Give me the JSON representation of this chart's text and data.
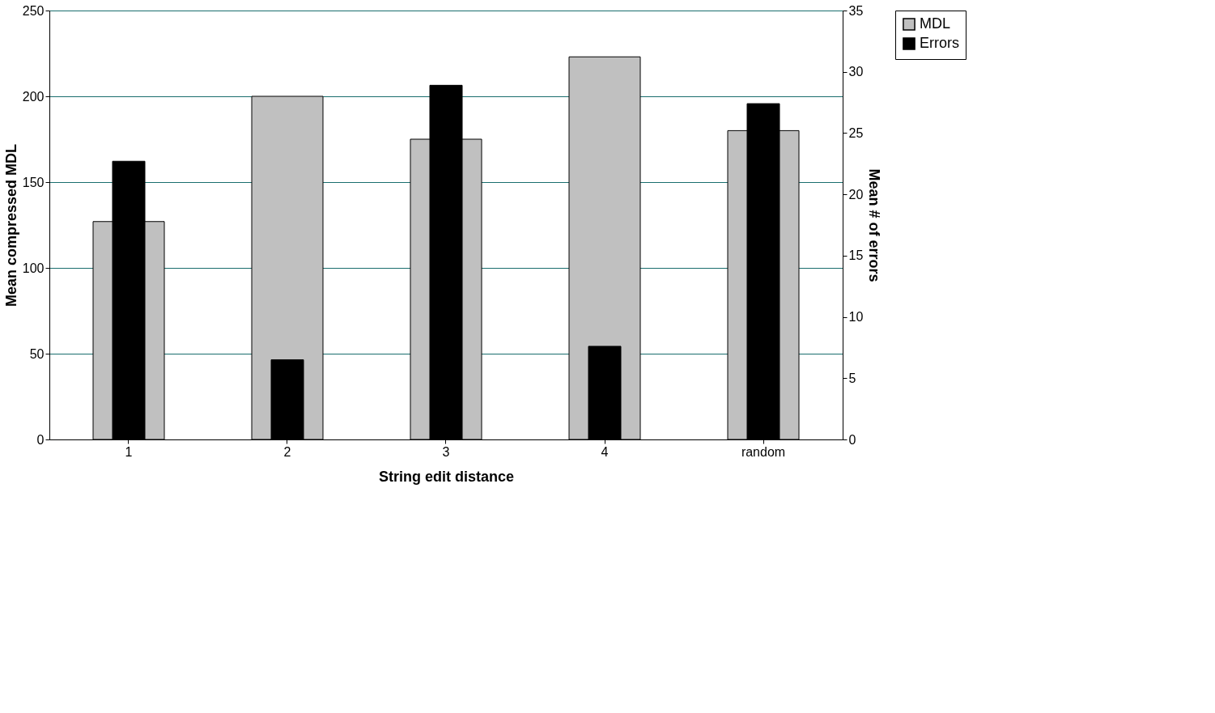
{
  "chart_data": {
    "type": "bar",
    "xlabel": "String edit distance",
    "ylabel": "Mean compressed MDL",
    "y2label": "Mean # of errors",
    "categories": [
      "1",
      "2",
      "3",
      "4",
      "random"
    ],
    "series": [
      {
        "name": "MDL",
        "color": "#c0c0c0",
        "values": [
          127,
          200,
          175,
          223,
          180
        ]
      },
      {
        "name": "Errors",
        "color": "#000000",
        "values": [
          22.7,
          6.5,
          28.9,
          7.6,
          27.4
        ],
        "axis": "y2"
      }
    ],
    "ylim": [
      0,
      250
    ],
    "yticks": [
      0,
      50,
      100,
      150,
      200,
      250
    ],
    "y2lim": [
      0,
      35
    ],
    "y2ticks": [
      0,
      5,
      10,
      15,
      20,
      25,
      30,
      35
    ],
    "grid": "y",
    "legend": "right"
  }
}
